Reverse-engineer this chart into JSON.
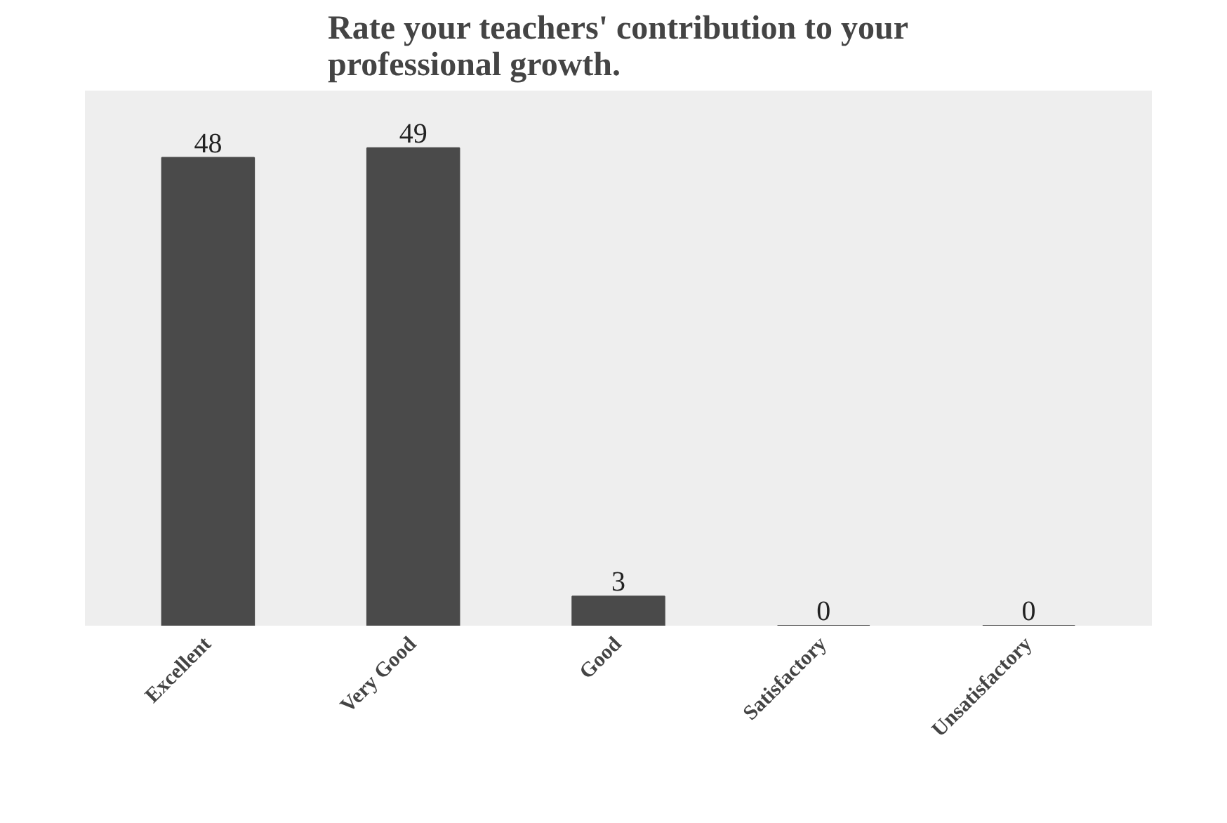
{
  "chart_data": {
    "type": "bar",
    "title": "Rate your teachers' contribution to your professional growth.",
    "categories": [
      "Excellent",
      "Very Good",
      "Good",
      "Satisfactory",
      "Unsatisfactory"
    ],
    "values": [
      48,
      49,
      3,
      0,
      0
    ],
    "color": "#4a4a4a",
    "data_labels": true
  }
}
